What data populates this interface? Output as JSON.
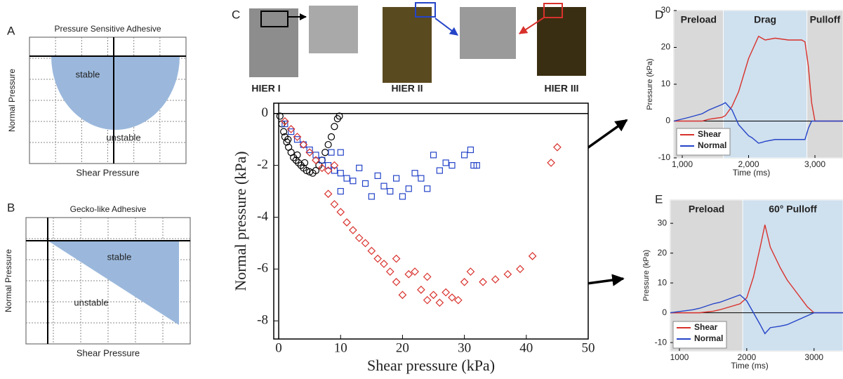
{
  "chart_data": [
    {
      "type": "region",
      "panel": "A",
      "title": "Pressure Sensitive Adhesive",
      "xlabel": "Shear Pressure",
      "ylabel": "Normal Pressure",
      "shape": "semicircle",
      "color": "#9bb8dc",
      "region_labels": [
        "stable",
        "unstable"
      ]
    },
    {
      "type": "region",
      "panel": "B",
      "title": "Gecko-like Adhesive",
      "xlabel": "Shear Pressure",
      "ylabel": "Normal Pressure",
      "shape": "triangle",
      "color": "#9bb8dc",
      "region_labels": [
        "stable",
        "unstable"
      ]
    },
    {
      "type": "scatter",
      "panel": "C",
      "xlabel": "Shear pressure (kPa)",
      "ylabel": "Normal pressure (kPa)",
      "xlim": [
        -0.8,
        50
      ],
      "ylim": [
        -8.7,
        0.4
      ],
      "xticks": [
        0,
        10,
        20,
        30,
        40,
        50
      ],
      "yticks": [
        0,
        -2,
        -4,
        -6,
        -8
      ],
      "series": [
        {
          "name": "HIER I",
          "color": "#000000",
          "marker": "circle",
          "x": [
            0.2,
            0.5,
            0.8,
            1,
            1.3,
            1.5,
            1.6,
            2,
            2.4,
            2.8,
            3,
            3.2,
            3.6,
            4,
            4.2,
            4.5,
            5,
            5.5,
            6,
            6.5,
            7,
            7.5,
            8,
            8.5,
            9,
            9.5,
            9.8
          ],
          "values": [
            -0.1,
            -0.4,
            -0.7,
            -0.9,
            -1.1,
            -1.0,
            -1.3,
            -1.5,
            -1.7,
            -1.8,
            -1.6,
            -1.9,
            -2.0,
            -2.1,
            -1.9,
            -2.2,
            -2.25,
            -2.3,
            -2.2,
            -2.0,
            -1.8,
            -1.5,
            -1.2,
            -0.9,
            -0.5,
            -0.2,
            -0.1
          ]
        },
        {
          "name": "HIER II",
          "color": "#2444c8",
          "marker": "square",
          "x": [
            1,
            2,
            3,
            4,
            5,
            6,
            7,
            8,
            8.5,
            9,
            10,
            10,
            10,
            11,
            12,
            13,
            14,
            15,
            16,
            17,
            18,
            19,
            20,
            21,
            22,
            23,
            24,
            25,
            26,
            27,
            28,
            30,
            31,
            31.5,
            32
          ],
          "values": [
            -0.4,
            -0.7,
            -1.0,
            -1.2,
            -1.4,
            -1.6,
            -1.8,
            -2.0,
            -1.5,
            -2.2,
            -2.3,
            -3.0,
            -1.5,
            -2.5,
            -2.6,
            -2.1,
            -2.7,
            -3.2,
            -2.4,
            -2.8,
            -3.0,
            -2.5,
            -3.2,
            -2.9,
            -2.3,
            -2.5,
            -2.9,
            -1.6,
            -2.2,
            -1.9,
            -2.0,
            -1.6,
            -1.4,
            -2.0,
            -2.0
          ]
        },
        {
          "name": "HIER III",
          "color": "#d8312c",
          "marker": "diamond",
          "x": [
            1,
            2,
            3,
            4,
            5,
            6,
            7,
            8,
            9,
            8,
            9,
            10,
            11,
            12,
            13,
            14,
            15,
            16,
            17,
            18,
            19,
            19,
            20,
            21,
            22,
            23,
            24,
            24,
            25,
            26,
            27,
            28,
            29,
            30,
            31,
            33,
            35,
            37,
            39,
            41,
            44,
            45
          ],
          "values": [
            -0.3,
            -0.6,
            -0.9,
            -1.2,
            -1.5,
            -1.8,
            -2.1,
            -2.2,
            -2.0,
            -3.1,
            -3.5,
            -3.8,
            -4.2,
            -4.5,
            -4.8,
            -5.0,
            -5.3,
            -5.6,
            -5.8,
            -6.1,
            -6.5,
            -5.6,
            -7.0,
            -6.2,
            -6.1,
            -6.8,
            -7.2,
            -6.3,
            -7.0,
            -7.3,
            -6.9,
            -7.1,
            -7.2,
            -6.5,
            -6.1,
            -6.5,
            -6.4,
            -6.2,
            -6.0,
            -5.5,
            -1.9,
            -1.3
          ]
        }
      ]
    },
    {
      "type": "line",
      "panel": "D",
      "xlabel": "Time (ms)",
      "ylabel": "Pressure (kPa)",
      "legend": "lower left",
      "xlim": [
        873,
        3423
      ],
      "ylim": [
        -10,
        30
      ],
      "xticks": [
        {
          "value": 1000,
          "label": "1,000"
        },
        {
          "value": 2000,
          "label": "2,000"
        },
        {
          "value": 3000,
          "label": "3,000"
        }
      ],
      "yticks": [
        -10,
        0,
        10,
        20,
        30
      ],
      "phases": [
        {
          "label": "Preload",
          "start": 873,
          "end": 1620,
          "color": "#d9d9d9"
        },
        {
          "label": "Drag",
          "start": 1620,
          "end": 2880,
          "color": "#cfe0ee"
        },
        {
          "label": "Pulloff",
          "start": 2880,
          "end": 3423,
          "color": "#d9d9d9"
        }
      ],
      "x": [
        873,
        1100,
        1300,
        1400,
        1600,
        1650,
        1750,
        1850,
        1950,
        2000,
        2050,
        2150,
        2200,
        2250,
        2400,
        2600,
        2800,
        2850,
        2900,
        2950,
        3000,
        3423
      ],
      "series": [
        {
          "name": "Shear",
          "color": "#d8312c",
          "values": [
            0,
            0,
            0,
            0.5,
            1,
            1.5,
            4,
            8,
            14,
            17,
            19,
            23,
            22.5,
            22,
            22.5,
            22,
            22,
            21.5,
            15,
            5,
            0,
            0
          ]
        },
        {
          "name": "Normal",
          "color": "#2444c8",
          "values": [
            0,
            1,
            2,
            3,
            4.5,
            5,
            3,
            -1,
            -3,
            -4,
            -4.5,
            -6,
            -5.8,
            -5.5,
            -5,
            -5,
            -5,
            -5,
            -2,
            0,
            0,
            0
          ]
        }
      ]
    },
    {
      "type": "line",
      "panel": "E",
      "xlabel": "Time (ms)",
      "ylabel": "Pressure (kPa)",
      "legend": "lower left",
      "xlim": [
        865,
        3430
      ],
      "ylim": [
        -12.8,
        37.8
      ],
      "xticks": [
        1000,
        2000,
        3000
      ],
      "yticks": [
        -10,
        0,
        10,
        20,
        30
      ],
      "phases": [
        {
          "label": "Preload",
          "start": 865,
          "end": 1940,
          "color": "#d9d9d9"
        },
        {
          "label": "60° Pulloff",
          "start": 1940,
          "end": 3430,
          "color": "#cfe0ee"
        }
      ],
      "x": [
        865,
        1200,
        1300,
        1500,
        1600,
        1900,
        2000,
        2100,
        2200,
        2270,
        2350,
        2500,
        2600,
        2700,
        2800,
        2900,
        3000,
        3430
      ],
      "series": [
        {
          "name": "Shear",
          "color": "#d8312c",
          "values": [
            0,
            0,
            0,
            0.5,
            1,
            3,
            5,
            12,
            22,
            29.5,
            22,
            15,
            11,
            8,
            5,
            2,
            0,
            0
          ]
        },
        {
          "name": "Normal",
          "color": "#2444c8",
          "values": [
            0,
            1,
            1.5,
            3,
            3.5,
            6,
            4,
            0,
            -4,
            -7,
            -5,
            -4.5,
            -4,
            -3,
            -2,
            -1,
            0,
            0
          ]
        }
      ]
    }
  ]
}
